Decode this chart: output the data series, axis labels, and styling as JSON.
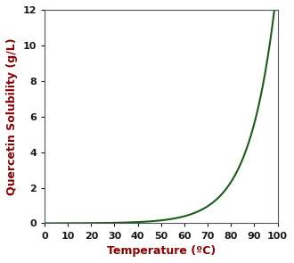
{
  "xlabel": "Temperature (ºC)",
  "ylabel": "Quercetin Solubility (g/L)",
  "xlabel_color": "#8B0000",
  "ylabel_color": "#8B0000",
  "tick_label_color": "#1A1A1A",
  "line_color": "#1A5C1A",
  "line_width": 1.5,
  "xlim": [
    0,
    100
  ],
  "ylim": [
    0,
    12
  ],
  "xticks": [
    0,
    10,
    20,
    30,
    40,
    50,
    60,
    70,
    80,
    90,
    100
  ],
  "yticks": [
    0,
    2,
    4,
    6,
    8,
    10,
    12
  ],
  "background_color": "#FFFFFF",
  "axis_label_fontsize": 9,
  "tick_fontsize": 8,
  "curve_a": 0.002,
  "curve_b": 0.0882
}
